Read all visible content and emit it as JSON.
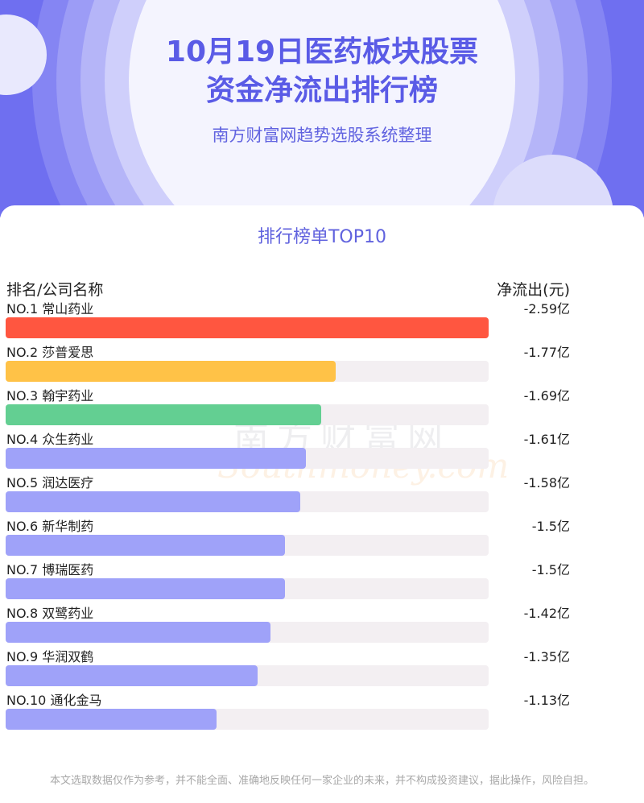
{
  "header": {
    "title_line1": "10月19日医药板块股票",
    "title_line2": "资金净流出排行榜",
    "subtitle": "南方财富网趋势选股系统整理"
  },
  "section_title": "排行榜单TOP10",
  "columns": {
    "left": "排名/公司名称",
    "right": "净流出(元)"
  },
  "watermark": {
    "cn": "南方财富网",
    "en": "Southmoney.com"
  },
  "footer": "本文选取数据仅作为参考，并不能全面、准确地反映任何一家企业的未来，并不构成投资建议，据此操作，风险自担。",
  "colors": {
    "header_bg": "#6f6ff0",
    "bar_1": "#ff5640",
    "bar_2": "#ffc247",
    "bar_3": "#63cf92",
    "bar_default": "#9fa2f9",
    "track": "#f3eff2"
  },
  "chart_data": {
    "type": "bar",
    "orientation": "horizontal",
    "title": "排行榜单TOP10",
    "xlabel": "",
    "ylabel": "",
    "categories": [
      "NO.1 常山药业",
      "NO.2 莎普爱思",
      "NO.3 翰宇药业",
      "NO.4 众生药业",
      "NO.5 润达医疗",
      "NO.6 新华制药",
      "NO.7 博瑞医药",
      "NO.8 双鹭药业",
      "NO.9 华润双鹤",
      "NO.10 通化金马"
    ],
    "values": [
      2.59,
      1.77,
      1.69,
      1.61,
      1.58,
      1.5,
      1.5,
      1.42,
      1.35,
      1.13
    ],
    "value_labels": [
      "-2.59亿",
      "-1.77亿",
      "-1.69亿",
      "-1.61亿",
      "-1.58亿",
      "-1.5亿",
      "-1.5亿",
      "-1.42亿",
      "-1.35亿",
      "-1.13亿"
    ],
    "unit": "亿",
    "xlim": [
      0,
      2.59
    ],
    "grid": false,
    "legend": "none"
  }
}
